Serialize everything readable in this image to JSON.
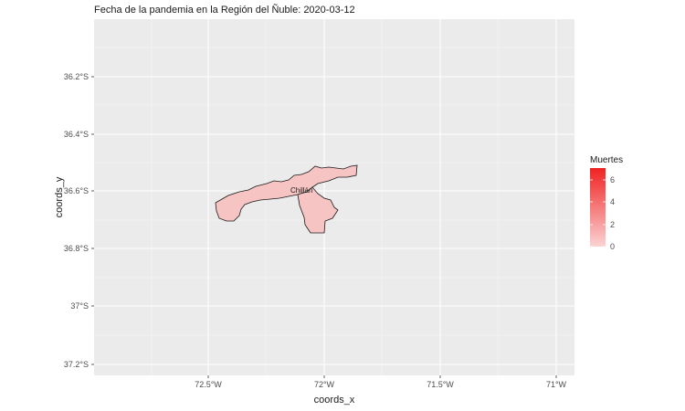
{
  "map": {
    "title": "Fecha de la pandemia en la Región del Ñuble: 2020-03-12",
    "x_label": "coords_x",
    "y_label": "coords_y",
    "x_ticks": [
      "72.5°W",
      "72°W",
      "71.5°W",
      "71°W"
    ],
    "y_ticks": [
      "36.2°S",
      "36.4°S",
      "36.6°S",
      "36.8°S",
      "37°S",
      "37.2°S"
    ],
    "place_label": "Chillán",
    "region_fill": "#f7c4c4",
    "panel_bg": "#ebebeb"
  },
  "legend": {
    "title": "Muertes",
    "labels": [
      "6",
      "4",
      "2",
      "0"
    ],
    "color_high": "#f02222",
    "color_low": "#fbd3d3",
    "value_shown": 0
  }
}
